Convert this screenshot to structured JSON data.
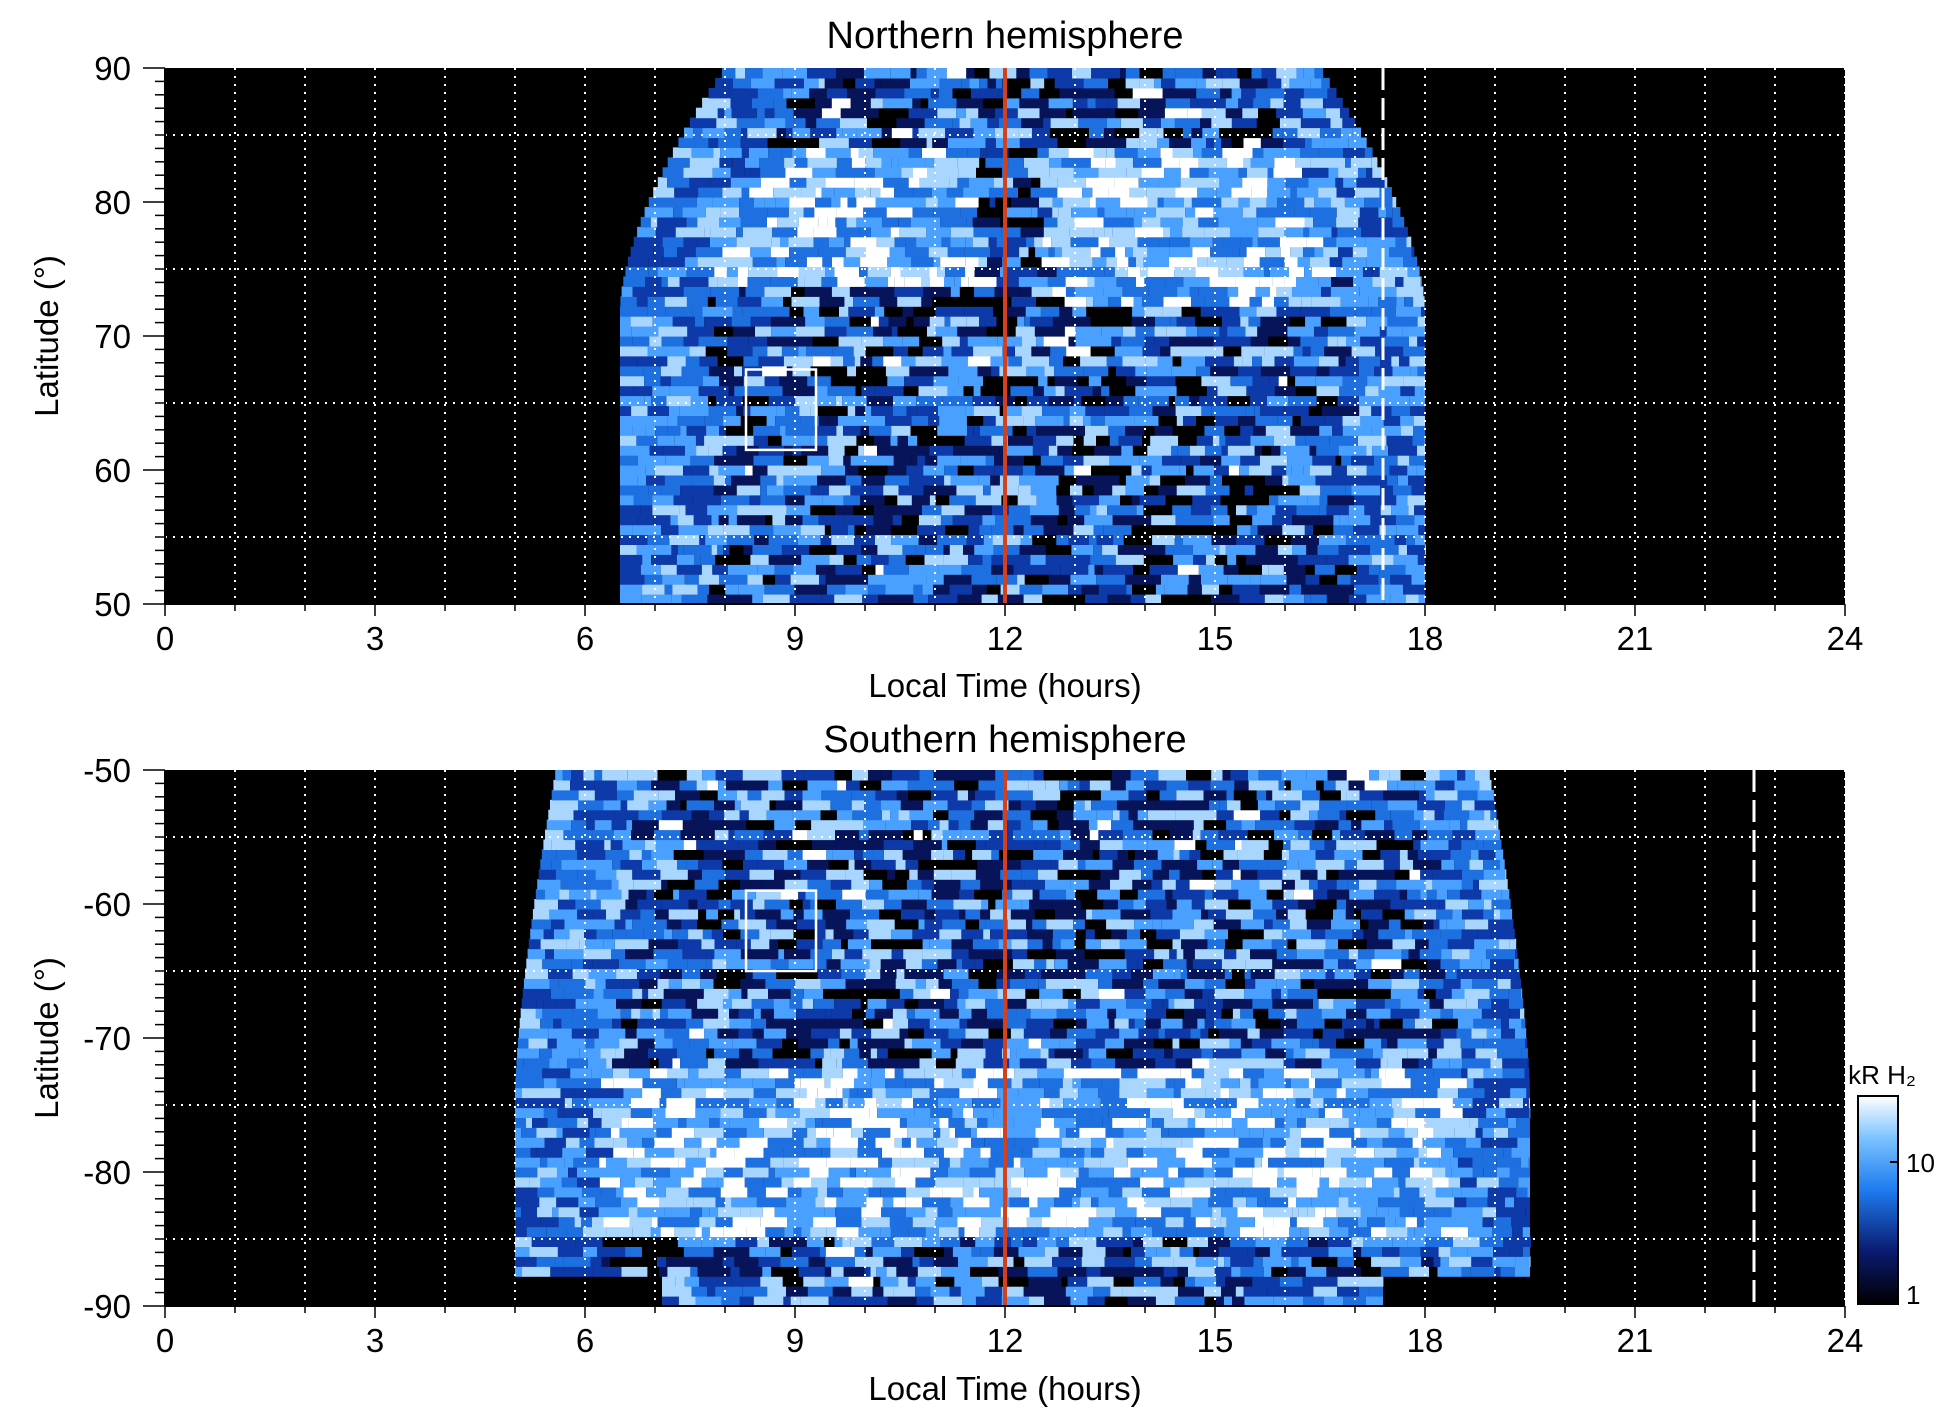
{
  "chart_data": [
    {
      "type": "heatmap",
      "title": "Northern hemisphere",
      "xlabel": "Local Time (hours)",
      "ylabel": "Latitude (°)",
      "xlim": [
        0,
        24
      ],
      "ylim": [
        50,
        90
      ],
      "x_ticks": [
        "0",
        "3",
        "6",
        "9",
        "12",
        "15",
        "18",
        "21",
        "24"
      ],
      "y_ticks": [
        "90",
        "80",
        "70",
        "60",
        "50"
      ],
      "grid": true,
      "colormap": "black-blue-white",
      "colors": {
        "background": "#000000",
        "low": "#0a1a6e",
        "mid": "#1e7cf0",
        "high": "#ffffff",
        "noon_line": "#d2401e"
      },
      "coverage_local_time": [
        6.5,
        18.0
      ],
      "noon_line_hours": 12,
      "dashed_line_hours": 17.4,
      "box": {
        "local_time": [
          8.3,
          9.3
        ],
        "latitude": [
          61.5,
          67.5
        ]
      },
      "bright_arcs": [
        {
          "local_time": [
            7.5,
            11.5
          ],
          "latitude": [
            74,
            84
          ]
        },
        {
          "local_time": [
            12.5,
            16.5
          ],
          "latitude": [
            72,
            84
          ]
        }
      ]
    },
    {
      "type": "heatmap",
      "title": "Southern hemisphere",
      "xlabel": "Local Time (hours)",
      "ylabel": "Latitude (°)",
      "xlim": [
        0,
        24
      ],
      "ylim": [
        -90,
        -50
      ],
      "x_ticks": [
        "0",
        "3",
        "6",
        "9",
        "12",
        "15",
        "18",
        "21",
        "24"
      ],
      "y_ticks": [
        "-50",
        "-60",
        "-70",
        "-80",
        "-90"
      ],
      "grid": true,
      "colormap": "black-blue-white",
      "coverage_local_time": [
        5.0,
        19.5
      ],
      "noon_line_hours": 12,
      "dashed_line_hours": 22.7,
      "box": {
        "local_time": [
          8.3,
          9.3
        ],
        "latitude": [
          -65,
          -59
        ]
      },
      "bright_arcs": [
        {
          "local_time": [
            6,
            12
          ],
          "latitude": [
            -85,
            -72
          ]
        },
        {
          "local_time": [
            12,
            18.5
          ],
          "latitude": [
            -85,
            -72
          ]
        }
      ]
    }
  ],
  "colorbar": {
    "label": "kR H₂",
    "ticks": [
      "10",
      "1"
    ],
    "scale": "log",
    "range": [
      1,
      30
    ]
  }
}
